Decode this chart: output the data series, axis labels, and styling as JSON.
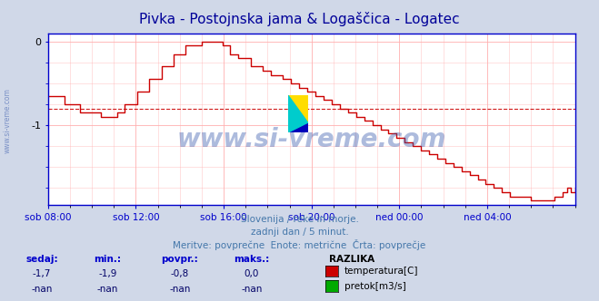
{
  "title": "Pivka - Postojnska jama & Logaščica - Logatec",
  "title_color": "#000099",
  "bg_color": "#d0d8e8",
  "plot_bg_color": "#ffffff",
  "grid_color": "#ffb0b0",
  "axis_color": "#0000cc",
  "line_color": "#cc0000",
  "avg_line_color": "#cc0000",
  "avg_value": -0.8,
  "ylim": [
    -1.95,
    0.1
  ],
  "yticks": [
    0,
    -1
  ],
  "xlim": [
    0,
    288
  ],
  "xtick_labels": [
    "sob 08:00",
    "sob 12:00",
    "sob 16:00",
    "sob 20:00",
    "ned 00:00",
    "ned 04:00"
  ],
  "xtick_positions": [
    0,
    48,
    96,
    144,
    192,
    240
  ],
  "watermark": "www.si-vreme.com",
  "watermark_color": "#3355aa",
  "subtitle1": "Slovenija / reke in morje.",
  "subtitle2": "zadnji dan / 5 minut.",
  "subtitle3": "Meritve: povprečne  Enote: metrične  Črta: povprečje",
  "subtitle_color": "#4477aa",
  "legend_header": "RAZLIKA",
  "legend_items": [
    "temperatura[C]",
    "pretok[m3/s]"
  ],
  "legend_colors": [
    "#cc0000",
    "#00aa00"
  ],
  "stats_headers": [
    "sedaj:",
    "min.:",
    "povpr.:",
    "maks.:"
  ],
  "stats_row1": [
    "-1,7",
    "-1,9",
    "-0,8",
    "0,0"
  ],
  "stats_row2": [
    "-nan",
    "-nan",
    "-nan",
    "-nan"
  ],
  "stats_color": "#0000cc",
  "stats_val_color": "#000066",
  "temperature_data": [
    -0.65,
    -0.65,
    -0.65,
    -0.65,
    -0.75,
    -0.75,
    -0.75,
    -0.75,
    -0.85,
    -0.85,
    -0.85,
    -0.85,
    -0.85,
    -0.9,
    -0.9,
    -0.9,
    -0.9,
    -0.85,
    -0.85,
    -0.75,
    -0.75,
    -0.75,
    -0.6,
    -0.6,
    -0.6,
    -0.45,
    -0.45,
    -0.45,
    -0.3,
    -0.3,
    -0.3,
    -0.15,
    -0.15,
    -0.15,
    -0.05,
    -0.05,
    -0.05,
    -0.05,
    0.0,
    0.0,
    0.0,
    0.0,
    0.0,
    -0.05,
    -0.05,
    -0.15,
    -0.15,
    -0.2,
    -0.2,
    -0.2,
    -0.3,
    -0.3,
    -0.3,
    -0.35,
    -0.35,
    -0.4,
    -0.4,
    -0.4,
    -0.45,
    -0.45,
    -0.5,
    -0.5,
    -0.55,
    -0.55,
    -0.6,
    -0.6,
    -0.65,
    -0.65,
    -0.7,
    -0.7,
    -0.75,
    -0.75,
    -0.8,
    -0.8,
    -0.85,
    -0.85,
    -0.9,
    -0.9,
    -0.95,
    -0.95,
    -1.0,
    -1.0,
    -1.05,
    -1.05,
    -1.1,
    -1.1,
    -1.15,
    -1.15,
    -1.2,
    -1.2,
    -1.25,
    -1.25,
    -1.3,
    -1.3,
    -1.35,
    -1.35,
    -1.4,
    -1.4,
    -1.45,
    -1.45,
    -1.5,
    -1.5,
    -1.55,
    -1.55,
    -1.6,
    -1.6,
    -1.65,
    -1.65,
    -1.7,
    -1.7,
    -1.75,
    -1.75,
    -1.8,
    -1.8,
    -1.85,
    -1.85,
    -1.85,
    -1.85,
    -1.85,
    -1.9,
    -1.9,
    -1.9,
    -1.9,
    -1.9,
    -1.9,
    -1.85,
    -1.85,
    -1.8,
    -1.75,
    -1.8,
    -1.75
  ]
}
